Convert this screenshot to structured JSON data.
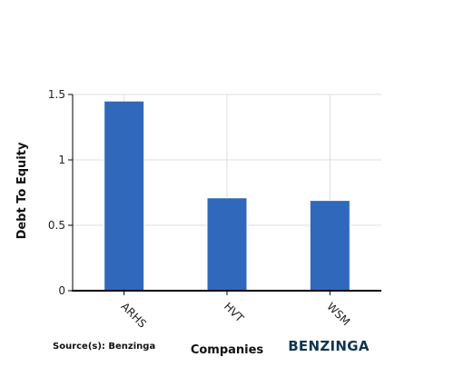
{
  "chart_data": {
    "type": "bar",
    "categories": [
      "ARHS",
      "HVT",
      "WSM"
    ],
    "values": [
      1.45,
      0.71,
      0.69
    ],
    "title": "",
    "xlabel": "Companies",
    "ylabel": "Debt To Equity",
    "ylim": [
      0,
      1.5
    ],
    "yticks": [
      0,
      0.5,
      1,
      1.5
    ],
    "ytick_labels": [
      "0",
      "0.5",
      "1",
      "1.5"
    ],
    "grid": true,
    "bar_color": "#3068bb",
    "gridline_color": "#dddddd",
    "axis_color": "#000000"
  },
  "footer": {
    "source": "Source(s): Benzinga",
    "brand": "BENZINGA"
  }
}
